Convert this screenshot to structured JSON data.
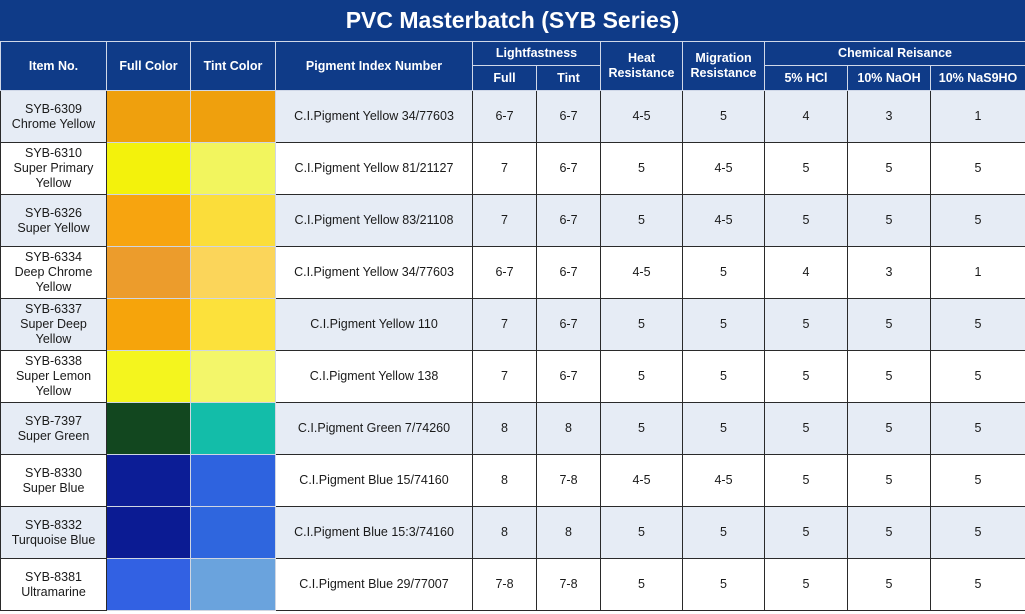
{
  "title": "PVC Masterbatch (SYB Series)",
  "headers": {
    "item_no": "Item No.",
    "full_color": "Full Color",
    "tint_color": "Tint Color",
    "pigment_index": "Pigment Index Number",
    "lightfastness": "Lightfastness",
    "lf_full": "Full",
    "lf_tint": "Tint",
    "heat_resistance": "Heat Resistance",
    "migration_resistance": "Migration Resistance",
    "chemical_resistance": "Chemical Reisance",
    "hcl": "5% HCl",
    "naoh": "10% NaOH",
    "nas": "10% NaS9HO"
  },
  "rows": [
    {
      "item": "SYB-6309",
      "name": "Chrome Yellow",
      "full_color": "#efa00d",
      "tint_color": "#efa00d",
      "pigment": "C.I.Pigment Yellow 34/77603",
      "lf_full": "6-7",
      "lf_tint": "6-7",
      "heat": "4-5",
      "migration": "5",
      "hcl": "4",
      "naoh": "3",
      "nas": "1"
    },
    {
      "item": "SYB-6310",
      "name": "Super Primary Yellow",
      "full_color": "#f3f20c",
      "tint_color": "#f2f55e",
      "pigment": "C.I.Pigment Yellow 81/21127",
      "lf_full": "7",
      "lf_tint": "6-7",
      "heat": "5",
      "migration": "4-5",
      "hcl": "5",
      "naoh": "5",
      "nas": "5"
    },
    {
      "item": "SYB-6326",
      "name": "Super Yellow",
      "full_color": "#f7a40f",
      "tint_color": "#fbdd3a",
      "pigment": "C.I.Pigment Yellow 83/21108",
      "lf_full": "7",
      "lf_tint": "6-7",
      "heat": "5",
      "migration": "4-5",
      "hcl": "5",
      "naoh": "5",
      "nas": "5"
    },
    {
      "item": "SYB-6334",
      "name": "Deep Chrome Yellow",
      "full_color": "#ec9c2c",
      "tint_color": "#fbd55a",
      "pigment": "C.I.Pigment Yellow 34/77603",
      "lf_full": "6-7",
      "lf_tint": "6-7",
      "heat": "4-5",
      "migration": "5",
      "hcl": "4",
      "naoh": "3",
      "nas": "1"
    },
    {
      "item": "SYB-6337",
      "name": "Super Deep Yellow",
      "full_color": "#f6a40b",
      "tint_color": "#fce13b",
      "pigment": "C.I.Pigment Yellow 110",
      "lf_full": "7",
      "lf_tint": "6-7",
      "heat": "5",
      "migration": "5",
      "hcl": "5",
      "naoh": "5",
      "nas": "5"
    },
    {
      "item": "SYB-6338",
      "name": "Super Lemon Yellow",
      "full_color": "#f4f51e",
      "tint_color": "#f3f66a",
      "pigment": "C.I.Pigment Yellow 138",
      "lf_full": "7",
      "lf_tint": "6-7",
      "heat": "5",
      "migration": "5",
      "hcl": "5",
      "naoh": "5",
      "nas": "5"
    },
    {
      "item": "SYB-7397",
      "name": "Super Green",
      "full_color": "#12471f",
      "tint_color": "#13bda9",
      "pigment": "C.I.Pigment Green 7/74260",
      "lf_full": "8",
      "lf_tint": "8",
      "heat": "5",
      "migration": "5",
      "hcl": "5",
      "naoh": "5",
      "nas": "5"
    },
    {
      "item": "SYB-8330",
      "name": "Super Blue",
      "full_color": "#0c1d96",
      "tint_color": "#2e63df",
      "pigment": "C.I.Pigment Blue 15/74160",
      "lf_full": "8",
      "lf_tint": "7-8",
      "heat": "4-5",
      "migration": "4-5",
      "hcl": "5",
      "naoh": "5",
      "nas": "5"
    },
    {
      "item": "SYB-8332",
      "name": "Turquoise Blue",
      "full_color": "#0b1b93",
      "tint_color": "#2f66de",
      "pigment": "C.I.Pigment Blue 15:3/74160",
      "lf_full": "8",
      "lf_tint": "8",
      "heat": "5",
      "migration": "5",
      "hcl": "5",
      "naoh": "5",
      "nas": "5"
    },
    {
      "item": "SYB-8381",
      "name": "Ultramarine",
      "full_color": "#3261e3",
      "tint_color": "#6aa3dd",
      "pigment": "C.I.Pigment Blue 29/77007",
      "lf_full": "7-8",
      "lf_tint": "7-8",
      "heat": "5",
      "migration": "5",
      "hcl": "5",
      "naoh": "5",
      "nas": "5"
    }
  ]
}
